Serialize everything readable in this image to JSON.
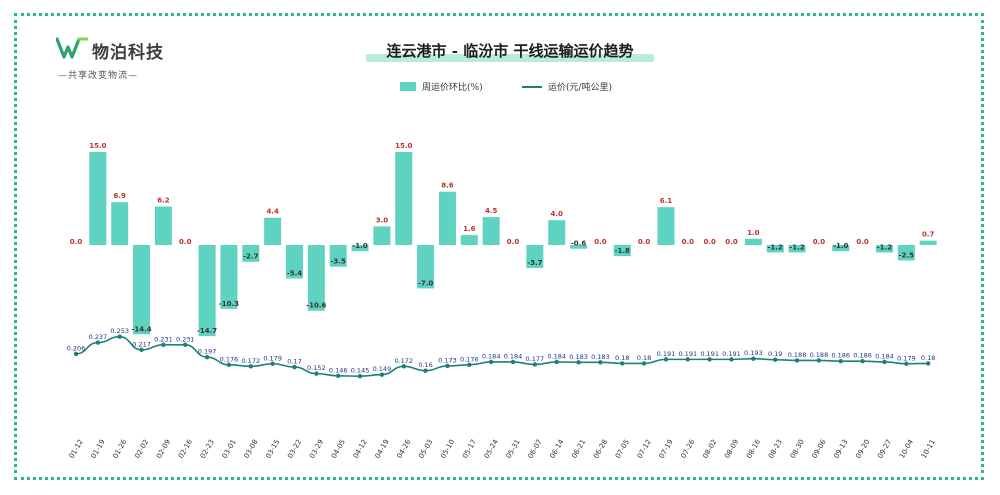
{
  "logo": {
    "name": "物泊科技",
    "slogan": "—共享改变物流—"
  },
  "title": "连云港市 - 临汾市 干线运输运价趋势",
  "legend": {
    "bar": "周运价环比(%)",
    "line": "运价(元/吨公里)"
  },
  "colors": {
    "bar": "#5fd3c2",
    "line": "#1f7f73",
    "bar_label": "#c0302b",
    "line_label": "#2a2f8a",
    "frame": "#2fb884"
  },
  "chart_data": {
    "type": "bar",
    "title": "连云港市 - 临汾市 干线运输运价趋势",
    "categories": [
      "01-12",
      "01-19",
      "01-26",
      "02-02",
      "02-09",
      "02-16",
      "02-23",
      "03-01",
      "03-08",
      "03-15",
      "03-22",
      "03-29",
      "04-05",
      "04-12",
      "04-19",
      "04-26",
      "05-03",
      "05-10",
      "05-17",
      "05-24",
      "05-31",
      "06-07",
      "06-14",
      "06-21",
      "06-28",
      "07-05",
      "07-12",
      "07-19",
      "07-26",
      "08-02",
      "08-09",
      "08-16",
      "08-23",
      "08-30",
      "09-06",
      "09-13",
      "09-20",
      "09-27",
      "10-04",
      "10-11"
    ],
    "series": [
      {
        "name": "周运价环比(%)",
        "type": "bar",
        "values": [
          0.0,
          15.0,
          6.9,
          -14.4,
          6.2,
          0.0,
          -14.7,
          -10.3,
          -2.7,
          4.4,
          -5.4,
          -10.6,
          -3.5,
          -1.0,
          3.0,
          15.0,
          -7.0,
          8.6,
          1.6,
          4.5,
          0.0,
          -3.7,
          4.0,
          -0.6,
          0.0,
          -1.8,
          0.0,
          6.1,
          0.0,
          0.0,
          0.0,
          1.0,
          -1.2,
          -1.2,
          0.0,
          -1.0,
          0.0,
          -1.2,
          -2.5,
          0.7
        ],
        "labels": [
          "0.0",
          "15.0",
          "6.9",
          "-14.4",
          "6.2",
          "0.0",
          "-14.7",
          "-10.3",
          "-2.7",
          "4.4",
          "-5.4",
          "-10.6",
          "-3.5",
          "-1.0",
          "3.0",
          "15.0",
          "-7.0",
          "8.6",
          "1.6",
          "4.5",
          "0.0",
          "-3.7",
          "4.0",
          "-0.6",
          "0.0",
          "-1.8",
          "0.0",
          "6.1",
          "0.0",
          "0.0",
          "0.0",
          "1.0",
          "-1.2",
          "-1.2",
          "0.0",
          "-1.0",
          "0.0",
          "-1.2",
          "-2.5",
          "0.7"
        ]
      },
      {
        "name": "运价(元/吨公里)",
        "type": "line",
        "values": [
          0.206,
          0.237,
          0.253,
          0.217,
          0.231,
          0.231,
          0.197,
          0.176,
          0.172,
          0.179,
          0.17,
          0.152,
          0.146,
          0.145,
          0.149,
          0.172,
          0.16,
          0.173,
          0.176,
          0.184,
          0.184,
          0.177,
          0.184,
          0.183,
          0.183,
          0.18,
          0.18,
          0.191,
          0.191,
          0.191,
          0.191,
          0.193,
          0.19,
          0.188,
          0.188,
          0.186,
          0.186,
          0.184,
          0.179,
          0.18
        ],
        "labels": [
          "0.206",
          "0.237",
          "0.253",
          "0.217",
          "0.231",
          "0.231",
          "0.197",
          "0.176",
          "0.172",
          "0.179",
          "0.17",
          "0.152",
          "0.146",
          "0.145",
          "0.149",
          "0.172",
          "0.16",
          "0.173",
          "0.176",
          "0.184",
          "0.184",
          "0.177",
          "0.184",
          "0.183",
          "0.183",
          "0.18",
          "0.18",
          "0.191",
          "0.191",
          "0.191",
          "0.191",
          "0.193",
          "0.19",
          "0.188",
          "0.188",
          "0.186",
          "0.186",
          "0.184",
          "0.179",
          "0.18"
        ]
      }
    ],
    "xlabel": "",
    "ylabel": "",
    "grid": false,
    "legend_position": "top-center"
  }
}
